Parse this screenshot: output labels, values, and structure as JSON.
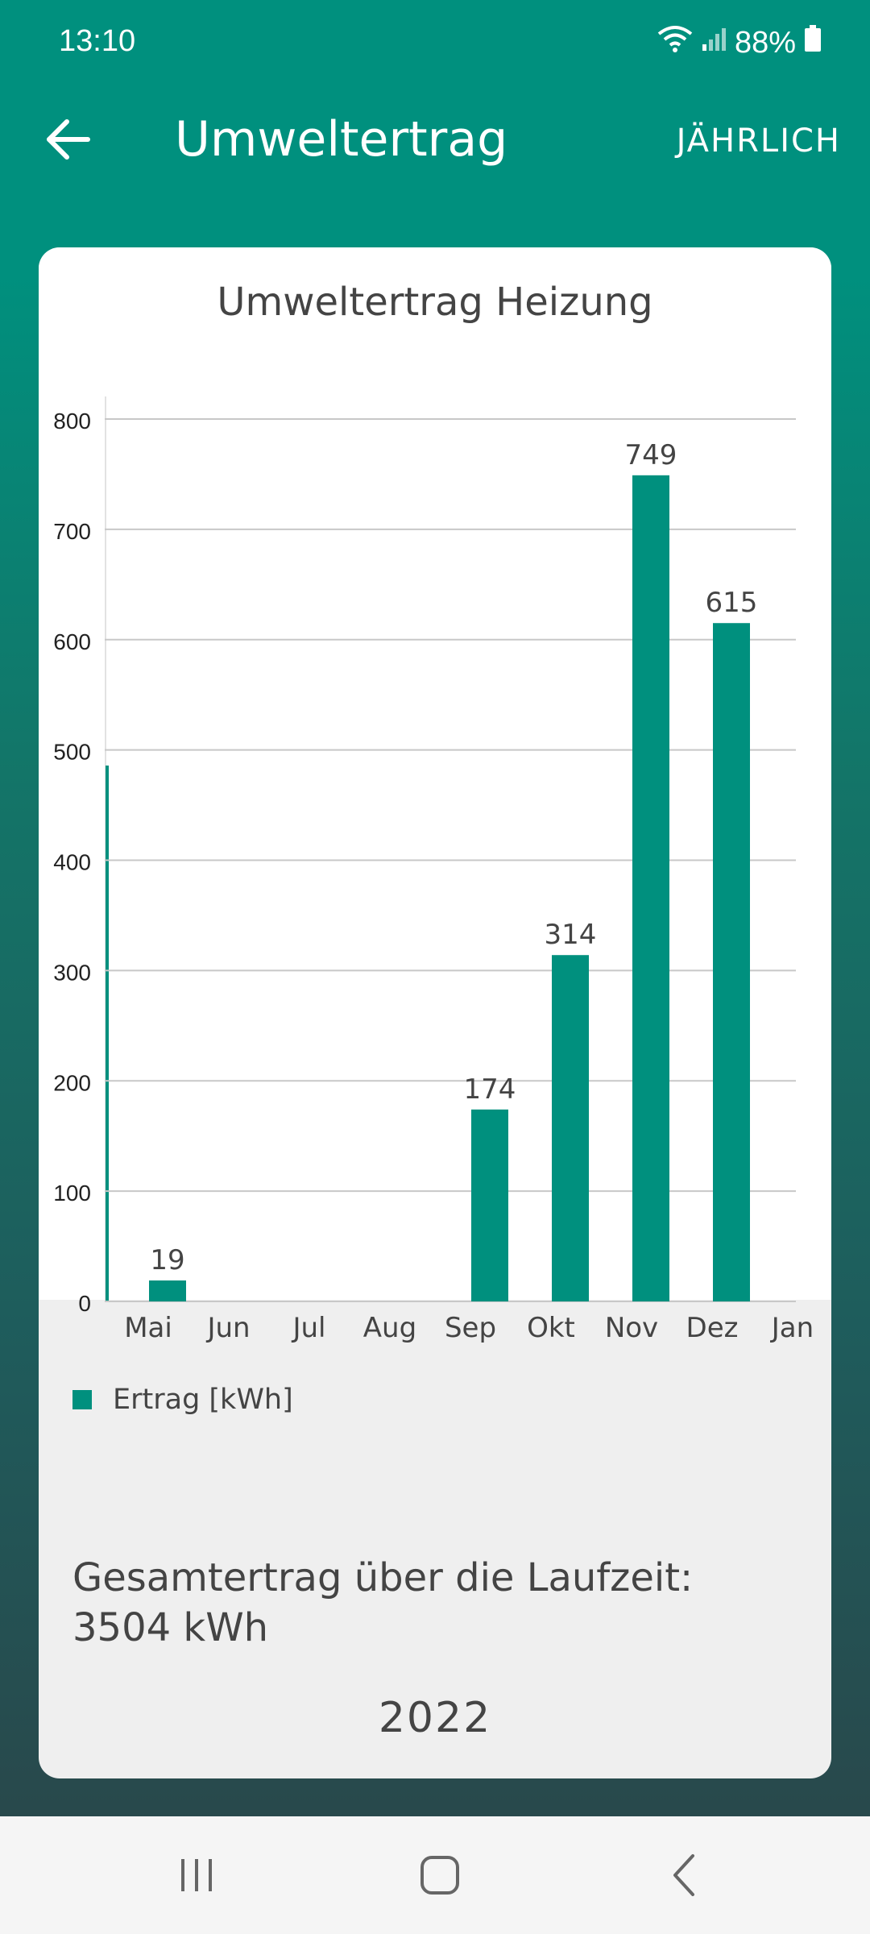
{
  "status_bar": {
    "time": "13:10",
    "battery": "88%",
    "icons": [
      "wifi-icon",
      "signal-icon",
      "battery-icon"
    ]
  },
  "app_bar": {
    "title": "Umweltertrag",
    "period_button": "JÄHRLICH",
    "back_icon": "arrow-left-icon"
  },
  "card": {
    "title": "Umweltertrag Heizung",
    "legend_label": "Ertrag [kWh]",
    "total_line1": "Gesamtertrag über die Laufzeit:",
    "total_line2": "3504 kWh",
    "year": "2022"
  },
  "colors": {
    "accent": "#00907e",
    "text": "#444444"
  },
  "chart_data": {
    "type": "bar",
    "categories": [
      "Mai",
      "Jun",
      "Jul",
      "Aug",
      "Sep",
      "Okt",
      "Nov",
      "Dez",
      "Jan"
    ],
    "values": [
      19,
      null,
      null,
      null,
      174,
      314,
      749,
      615,
      null
    ],
    "ylim": [
      0,
      800
    ],
    "yticks": [
      0,
      100,
      200,
      300,
      400,
      500,
      600,
      700,
      800
    ],
    "grid": true,
    "legend_placement": "bottom-left",
    "series": [
      {
        "name": "Ertrag [kWh]",
        "values": [
          19,
          null,
          null,
          null,
          174,
          314,
          749,
          615,
          null
        ]
      }
    ]
  },
  "nav_bar": {
    "icons": [
      "recent-apps-icon",
      "home-icon",
      "back-icon"
    ]
  }
}
